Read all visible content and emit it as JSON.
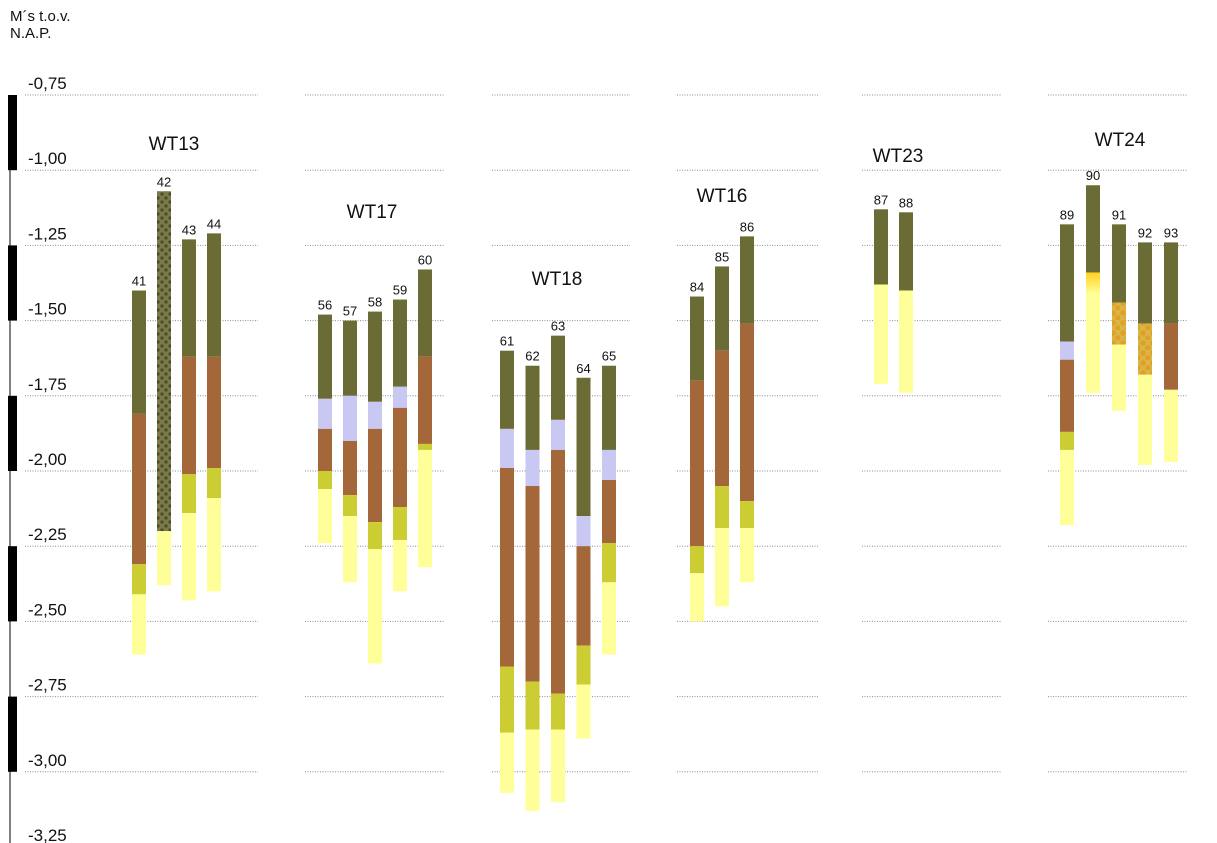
{
  "y_axis": {
    "title_line1": "M´s  t.o.v.",
    "title_line2": "N.A.P."
  },
  "colors": {
    "olive": "#6b6b36",
    "lavender": "#c9c8f3",
    "brown": "#a3673a",
    "yellow_green": "#cccc33",
    "pale_yellow": "#ffff99",
    "olive_dotted": "#7a7a4a",
    "dot_dark": "#4b4b2a",
    "yellow_dotted": "#d9b44a",
    "dot_orange": "#e0a020",
    "yellow_gradient_top": "#ffd21f"
  },
  "chart_data": {
    "type": "stacked-interval-columns",
    "y_unit": "m t.o.v. N.A.P.",
    "ylim": [
      -3.25,
      -0.75
    ],
    "y_ticks": [
      -0.75,
      -1.0,
      -1.25,
      -1.5,
      -1.75,
      -2.0,
      -2.25,
      -2.5,
      -2.75,
      -3.0,
      -3.25
    ],
    "y_tick_labels": [
      "-0,75",
      "-1,00",
      "-1,25",
      "-1,50",
      "-1,75",
      "-2,00",
      "-2,25",
      "-2,50",
      "-2,75",
      "-3,00",
      "-3,25"
    ],
    "grid": true,
    "groups": [
      {
        "name": "WT13",
        "cores": [
          {
            "id": "41",
            "layers": [
              {
                "material": "olive",
                "top": -1.4,
                "bottom": -1.81
              },
              {
                "material": "brown",
                "top": -1.81,
                "bottom": -2.31
              },
              {
                "material": "yellow_green",
                "top": -2.31,
                "bottom": -2.41
              },
              {
                "material": "pale_yellow",
                "top": -2.41,
                "bottom": -2.61
              }
            ]
          },
          {
            "id": "42",
            "layers": [
              {
                "material": "olive_dotted",
                "top": -1.07,
                "bottom": -2.2
              },
              {
                "material": "pale_yellow",
                "top": -2.2,
                "bottom": -2.38
              }
            ]
          },
          {
            "id": "43",
            "layers": [
              {
                "material": "olive",
                "top": -1.23,
                "bottom": -1.62
              },
              {
                "material": "brown",
                "top": -1.62,
                "bottom": -2.01
              },
              {
                "material": "yellow_green",
                "top": -2.01,
                "bottom": -2.14
              },
              {
                "material": "pale_yellow",
                "top": -2.14,
                "bottom": -2.43
              }
            ]
          },
          {
            "id": "44",
            "layers": [
              {
                "material": "olive",
                "top": -1.21,
                "bottom": -1.62
              },
              {
                "material": "brown",
                "top": -1.62,
                "bottom": -1.99
              },
              {
                "material": "yellow_green",
                "top": -1.99,
                "bottom": -2.09
              },
              {
                "material": "pale_yellow",
                "top": -2.09,
                "bottom": -2.4
              }
            ]
          }
        ]
      },
      {
        "name": "WT17",
        "cores": [
          {
            "id": "56",
            "layers": [
              {
                "material": "olive",
                "top": -1.48,
                "bottom": -1.76
              },
              {
                "material": "lavender",
                "top": -1.76,
                "bottom": -1.86
              },
              {
                "material": "brown",
                "top": -1.86,
                "bottom": -2.0
              },
              {
                "material": "yellow_green",
                "top": -2.0,
                "bottom": -2.06
              },
              {
                "material": "pale_yellow",
                "top": -2.06,
                "bottom": -2.24
              }
            ]
          },
          {
            "id": "57",
            "layers": [
              {
                "material": "olive",
                "top": -1.5,
                "bottom": -1.75
              },
              {
                "material": "lavender",
                "top": -1.75,
                "bottom": -1.9
              },
              {
                "material": "brown",
                "top": -1.9,
                "bottom": -2.08
              },
              {
                "material": "yellow_green",
                "top": -2.08,
                "bottom": -2.15
              },
              {
                "material": "pale_yellow",
                "top": -2.15,
                "bottom": -2.37
              }
            ]
          },
          {
            "id": "58",
            "layers": [
              {
                "material": "olive",
                "top": -1.47,
                "bottom": -1.77
              },
              {
                "material": "lavender",
                "top": -1.77,
                "bottom": -1.86
              },
              {
                "material": "brown",
                "top": -1.86,
                "bottom": -2.17
              },
              {
                "material": "yellow_green",
                "top": -2.17,
                "bottom": -2.26
              },
              {
                "material": "pale_yellow",
                "top": -2.26,
                "bottom": -2.64
              }
            ]
          },
          {
            "id": "59",
            "layers": [
              {
                "material": "olive",
                "top": -1.43,
                "bottom": -1.72
              },
              {
                "material": "lavender",
                "top": -1.72,
                "bottom": -1.79
              },
              {
                "material": "brown",
                "top": -1.79,
                "bottom": -2.12
              },
              {
                "material": "yellow_green",
                "top": -2.12,
                "bottom": -2.23
              },
              {
                "material": "pale_yellow",
                "top": -2.23,
                "bottom": -2.4
              }
            ]
          },
          {
            "id": "60",
            "layers": [
              {
                "material": "olive",
                "top": -1.33,
                "bottom": -1.62
              },
              {
                "material": "brown",
                "top": -1.62,
                "bottom": -1.91
              },
              {
                "material": "yellow_green",
                "top": -1.91,
                "bottom": -1.93
              },
              {
                "material": "pale_yellow",
                "top": -1.93,
                "bottom": -2.32
              }
            ]
          }
        ]
      },
      {
        "name": "WT18",
        "cores": [
          {
            "id": "61",
            "layers": [
              {
                "material": "olive",
                "top": -1.6,
                "bottom": -1.86
              },
              {
                "material": "lavender",
                "top": -1.86,
                "bottom": -1.99
              },
              {
                "material": "brown",
                "top": -1.99,
                "bottom": -2.65
              },
              {
                "material": "yellow_green",
                "top": -2.65,
                "bottom": -2.87
              },
              {
                "material": "pale_yellow",
                "top": -2.87,
                "bottom": -3.07
              }
            ]
          },
          {
            "id": "62",
            "layers": [
              {
                "material": "olive",
                "top": -1.65,
                "bottom": -1.93
              },
              {
                "material": "lavender",
                "top": -1.93,
                "bottom": -2.05
              },
              {
                "material": "brown",
                "top": -2.05,
                "bottom": -2.7
              },
              {
                "material": "yellow_green",
                "top": -2.7,
                "bottom": -2.86
              },
              {
                "material": "pale_yellow",
                "top": -2.86,
                "bottom": -3.13
              }
            ]
          },
          {
            "id": "63",
            "layers": [
              {
                "material": "olive",
                "top": -1.55,
                "bottom": -1.83
              },
              {
                "material": "lavender",
                "top": -1.83,
                "bottom": -1.93
              },
              {
                "material": "brown",
                "top": -1.93,
                "bottom": -2.74
              },
              {
                "material": "yellow_green",
                "top": -2.74,
                "bottom": -2.86
              },
              {
                "material": "pale_yellow",
                "top": -2.86,
                "bottom": -3.1
              }
            ]
          },
          {
            "id": "64",
            "layers": [
              {
                "material": "olive",
                "top": -1.69,
                "bottom": -2.15
              },
              {
                "material": "lavender",
                "top": -2.15,
                "bottom": -2.25
              },
              {
                "material": "brown",
                "top": -2.25,
                "bottom": -2.58
              },
              {
                "material": "yellow_green",
                "top": -2.58,
                "bottom": -2.71
              },
              {
                "material": "pale_yellow",
                "top": -2.71,
                "bottom": -2.89
              }
            ]
          },
          {
            "id": "65",
            "layers": [
              {
                "material": "olive",
                "top": -1.65,
                "bottom": -1.93
              },
              {
                "material": "lavender",
                "top": -1.93,
                "bottom": -2.03
              },
              {
                "material": "brown",
                "top": -2.03,
                "bottom": -2.24
              },
              {
                "material": "yellow_green",
                "top": -2.24,
                "bottom": -2.37
              },
              {
                "material": "pale_yellow",
                "top": -2.37,
                "bottom": -2.61
              }
            ]
          }
        ]
      },
      {
        "name": "WT16",
        "cores": [
          {
            "id": "84",
            "layers": [
              {
                "material": "olive",
                "top": -1.42,
                "bottom": -1.7
              },
              {
                "material": "brown",
                "top": -1.7,
                "bottom": -2.25
              },
              {
                "material": "yellow_green",
                "top": -2.25,
                "bottom": -2.34
              },
              {
                "material": "pale_yellow",
                "top": -2.34,
                "bottom": -2.5
              }
            ]
          },
          {
            "id": "85",
            "layers": [
              {
                "material": "olive",
                "top": -1.32,
                "bottom": -1.6
              },
              {
                "material": "brown",
                "top": -1.6,
                "bottom": -2.05
              },
              {
                "material": "yellow_green",
                "top": -2.05,
                "bottom": -2.19
              },
              {
                "material": "pale_yellow",
                "top": -2.19,
                "bottom": -2.45
              }
            ]
          },
          {
            "id": "86",
            "layers": [
              {
                "material": "olive",
                "top": -1.22,
                "bottom": -1.51
              },
              {
                "material": "brown",
                "top": -1.51,
                "bottom": -2.1
              },
              {
                "material": "yellow_green",
                "top": -2.1,
                "bottom": -2.19
              },
              {
                "material": "pale_yellow",
                "top": -2.19,
                "bottom": -2.37
              }
            ]
          }
        ]
      },
      {
        "name": "WT23",
        "cores": [
          {
            "id": "87",
            "layers": [
              {
                "material": "olive",
                "top": -1.13,
                "bottom": -1.38
              },
              {
                "material": "pale_yellow",
                "top": -1.38,
                "bottom": -1.71
              }
            ]
          },
          {
            "id": "88",
            "layers": [
              {
                "material": "olive",
                "top": -1.14,
                "bottom": -1.4
              },
              {
                "material": "pale_yellow",
                "top": -1.4,
                "bottom": -1.74
              }
            ]
          }
        ]
      },
      {
        "name": "WT24",
        "cores": [
          {
            "id": "89",
            "layers": [
              {
                "material": "olive",
                "top": -1.18,
                "bottom": -1.57
              },
              {
                "material": "lavender",
                "top": -1.57,
                "bottom": -1.63
              },
              {
                "material": "brown",
                "top": -1.63,
                "bottom": -1.87
              },
              {
                "material": "yellow_green",
                "top": -1.87,
                "bottom": -1.93
              },
              {
                "material": "pale_yellow",
                "top": -1.93,
                "bottom": -2.18
              }
            ]
          },
          {
            "id": "90",
            "layers": [
              {
                "material": "olive",
                "top": -1.05,
                "bottom": -1.34
              },
              {
                "material": "yellow_gradient",
                "top": -1.34,
                "bottom": -1.74
              }
            ]
          },
          {
            "id": "91",
            "layers": [
              {
                "material": "olive",
                "top": -1.18,
                "bottom": -1.44
              },
              {
                "material": "yellow_dotted",
                "top": -1.44,
                "bottom": -1.58
              },
              {
                "material": "pale_yellow",
                "top": -1.58,
                "bottom": -1.8
              }
            ]
          },
          {
            "id": "92",
            "layers": [
              {
                "material": "olive",
                "top": -1.24,
                "bottom": -1.51
              },
              {
                "material": "yellow_dotted",
                "top": -1.51,
                "bottom": -1.68
              },
              {
                "material": "pale_yellow",
                "top": -1.68,
                "bottom": -1.98
              }
            ]
          },
          {
            "id": "93",
            "layers": [
              {
                "material": "olive",
                "top": -1.24,
                "bottom": -1.51
              },
              {
                "material": "brown",
                "top": -1.51,
                "bottom": -1.73
              },
              {
                "material": "pale_yellow",
                "top": -1.73,
                "bottom": -1.97
              }
            ]
          }
        ]
      }
    ]
  }
}
